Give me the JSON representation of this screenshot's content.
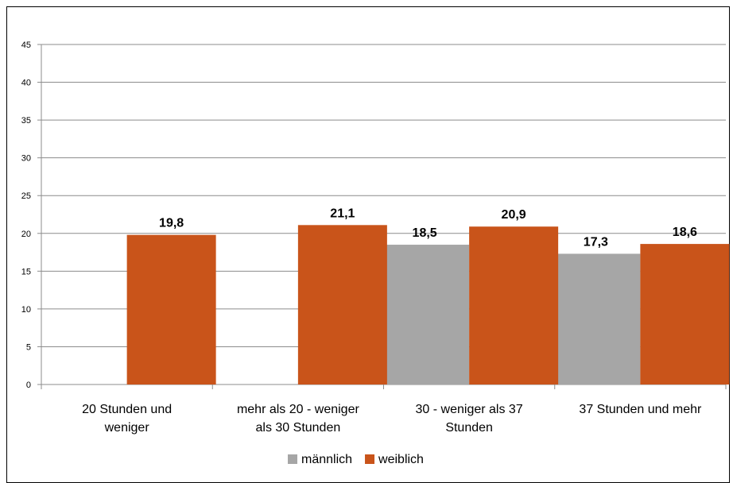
{
  "chart_data": {
    "type": "bar",
    "categories": [
      [
        "20 Stunden und",
        "weniger"
      ],
      [
        "mehr als 20 - weniger",
        "als 30 Stunden"
      ],
      [
        "30 - weniger als 37",
        "Stunden"
      ],
      [
        "37 Stunden und mehr"
      ]
    ],
    "series": [
      {
        "name": "männlich",
        "color": "#a6a6a6",
        "values": [
          null,
          null,
          18.5,
          17.3
        ],
        "labels": [
          "",
          "",
          "18,5",
          "17,3"
        ]
      },
      {
        "name": "weiblich",
        "color": "#c9541a",
        "values": [
          19.8,
          21.1,
          20.9,
          18.6
        ],
        "labels": [
          "19,8",
          "21,1",
          "20,9",
          "18,6"
        ]
      }
    ],
    "ylim": [
      0,
      45
    ],
    "yticks": [
      0,
      5,
      10,
      15,
      20,
      25,
      30,
      35,
      40,
      45
    ],
    "grid": true,
    "legend": "bottom"
  }
}
